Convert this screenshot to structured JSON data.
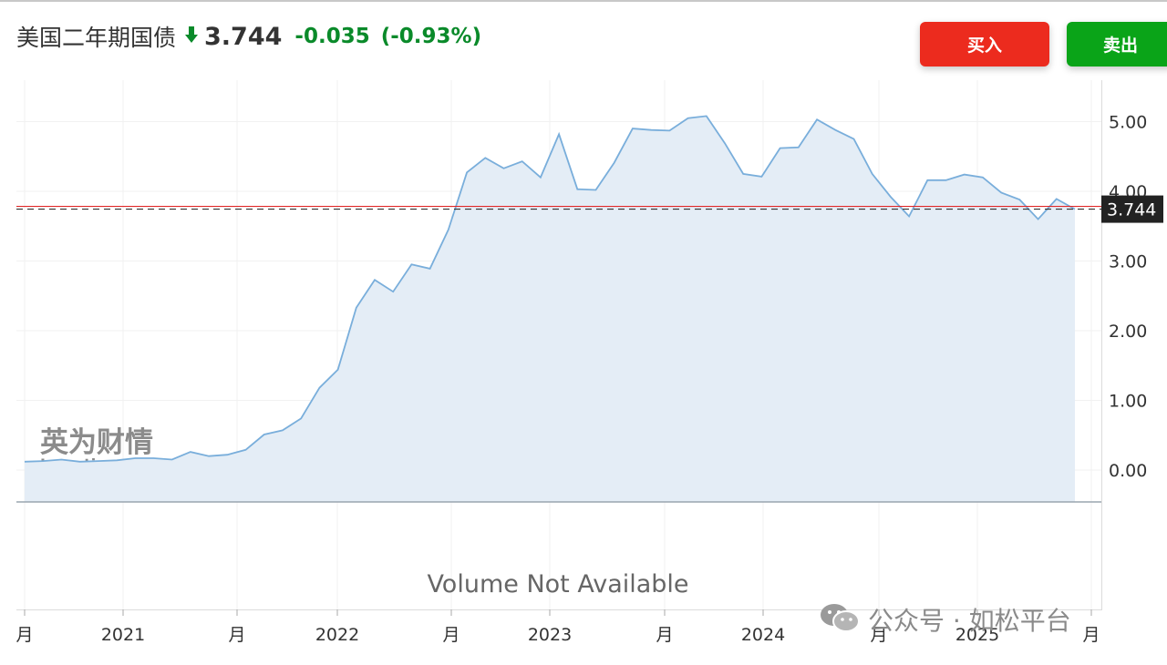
{
  "header": {
    "instrument": "美国二年期国债",
    "price": "3.744",
    "change": "-0.035",
    "change_pct": "(-0.93%)",
    "arrow_icon": "down-arrow-icon",
    "change_color": "#0a8a2a"
  },
  "actions": {
    "buy_label": "买入",
    "sell_label": "卖出",
    "buy_color": "#ec2b1e",
    "sell_color": "#0aa418"
  },
  "watermark": {
    "cn": "英为财情",
    "en": "Investing.com"
  },
  "volume_text": "Volume Not Available",
  "footer": {
    "text": "公众号 · 如松平台",
    "icon": "wechat-icon"
  },
  "chart_data": {
    "type": "area",
    "title": "",
    "xlabel": "",
    "ylabel": "",
    "ylim": [
      -0.5,
      5.7
    ],
    "yticks": [
      "0.00",
      "1.00",
      "2.00",
      "3.00",
      "4.00",
      "5.00"
    ],
    "xticks": [
      "月",
      "2021",
      "月",
      "2022",
      "月",
      "2023",
      "月",
      "2024",
      "月",
      "2025",
      "月"
    ],
    "last_price": 3.744,
    "last_price_label": "3.744",
    "grid": true,
    "line_color": "#79aedb",
    "fill_color": "#e4edf6",
    "series": [
      {
        "values": [
          0.12,
          0.13,
          0.15,
          0.12,
          0.13,
          0.14,
          0.17,
          0.17,
          0.15,
          0.26,
          0.2,
          0.22,
          0.29,
          0.51,
          0.57,
          0.74,
          1.18,
          1.44,
          2.33,
          2.73,
          2.56,
          2.95,
          2.89,
          3.45,
          4.27,
          4.48,
          4.33,
          4.43,
          4.2,
          4.82,
          4.03,
          4.02,
          4.41,
          4.9,
          4.88,
          4.87,
          5.05,
          5.08,
          4.69,
          4.25,
          4.21,
          4.62,
          4.63,
          5.03,
          4.88,
          4.75,
          4.25,
          3.92,
          3.64,
          4.16,
          4.16,
          4.24,
          4.2,
          3.98,
          3.88,
          3.6,
          3.89,
          3.744
        ]
      }
    ]
  }
}
